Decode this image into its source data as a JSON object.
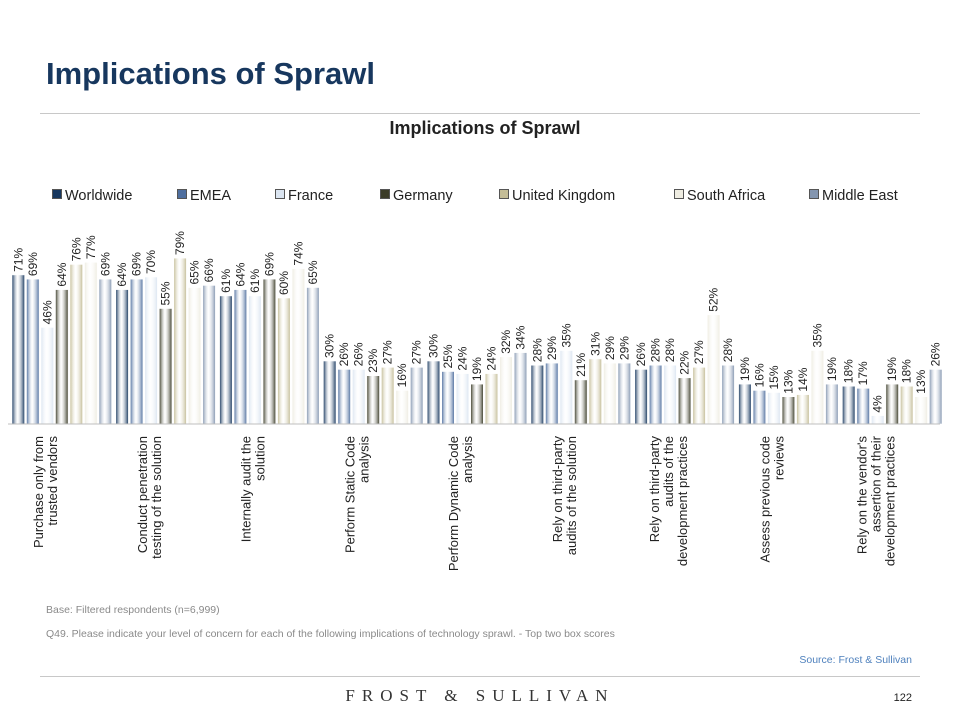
{
  "slide": {
    "title": "Implications of Sprawl",
    "base_note": "Base: Filtered respondents (n=6,999)",
    "question_note": "Q49. Please indicate your level of concern for each of the following implications of technology sprawl. - Top two box scores",
    "source": "Source: Frost & Sullivan",
    "brand": "FROST & SULLIVAN",
    "page_number": "122"
  },
  "chart_data": {
    "type": "bar",
    "title": "Implications of Sprawl",
    "ylim": [
      0,
      100
    ],
    "grid": false,
    "legend_position": "top",
    "categories": [
      "Purchase only from trusted vendors",
      "Conduct penetration testing of the solution",
      "Internally audit the solution",
      "Perform Static Code analysis",
      "Perform Dynamic Code analysis",
      "Rely on third-party audits of the solution",
      "Rely on third-party audits of the development practices",
      "Assess previous code reviews",
      "Rely on the vendor's assertion of their development practices"
    ],
    "category_lines": [
      [
        "Purchase only from",
        "trusted vendors"
      ],
      [
        "Conduct penetration",
        "testing of the solution"
      ],
      [
        "Internally audit the",
        "solution"
      ],
      [
        "Perform Static Code",
        "analysis"
      ],
      [
        "Perform Dynamic Code",
        "analysis"
      ],
      [
        "Rely on third-party",
        "audits of the solution"
      ],
      [
        "Rely on third-party",
        "audits of the",
        "development practices"
      ],
      [
        "Assess previous code",
        "reviews"
      ],
      [
        "Rely on the vendor's",
        "assertion of their",
        "development practices"
      ]
    ],
    "series": [
      {
        "name": "Worldwide",
        "color": "#17375e",
        "values": [
          71,
          64,
          61,
          30,
          30,
          28,
          26,
          19,
          18
        ]
      },
      {
        "name": "EMEA",
        "color": "#4f6f9f",
        "values": [
          69,
          69,
          64,
          26,
          25,
          29,
          28,
          16,
          17
        ]
      },
      {
        "name": "France",
        "color": "#dbe5f1",
        "values": [
          46,
          70,
          61,
          26,
          24,
          35,
          28,
          15,
          4
        ]
      },
      {
        "name": "Germany",
        "color": "#3b3c28",
        "values": [
          64,
          55,
          69,
          23,
          19,
          21,
          22,
          13,
          19
        ]
      },
      {
        "name": "United Kingdom",
        "color": "#c4bd97",
        "values": [
          76,
          79,
          60,
          27,
          24,
          31,
          27,
          14,
          18
        ]
      },
      {
        "name": "South Africa",
        "color": "#eeece1",
        "values": [
          77,
          65,
          74,
          16,
          32,
          29,
          52,
          35,
          13
        ]
      },
      {
        "name": "Middle East",
        "color": "#8496b0",
        "values": [
          69,
          66,
          65,
          27,
          34,
          29,
          28,
          19,
          26
        ]
      }
    ]
  }
}
